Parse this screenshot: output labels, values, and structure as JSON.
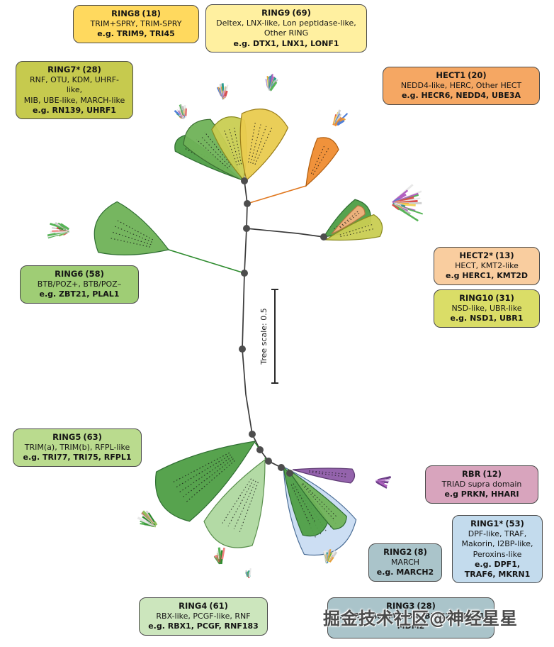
{
  "figure": {
    "scale_label": "Tree scale: 0.5",
    "watermark": "掘金技术社区@神经星星"
  },
  "boxes": [
    {
      "id": "ring8",
      "title": "RING8",
      "count": "(18)",
      "lines": [
        "TRIM+SPRY, TRIM-SPRY"
      ],
      "examples": "e.g. TRIM9, TRI45",
      "bg": "#FFD95E"
    },
    {
      "id": "ring9",
      "title": "RING9",
      "count": "(69)",
      "lines": [
        "Deltex, LNX-like, Lon peptidase-like,",
        "Other RING"
      ],
      "examples": "e.g. DTX1, LNX1, LONF1",
      "bg": "#FFF0A0"
    },
    {
      "id": "ring7",
      "title": "RING7*",
      "count": "(28)",
      "lines": [
        "RNF, OTU, KDM, UHRF-like,",
        "MIB, UBE-like, MARCH-like"
      ],
      "examples": "e.g. RN139, UHRF1",
      "bg": "#C6CA4E"
    },
    {
      "id": "hect1",
      "title": "HECT1",
      "count": "(20)",
      "lines": [
        "NEDD4-like, HERC, Other HECT"
      ],
      "examples": "e.g. HECR6, NEDD4, UBE3A",
      "bg": "#F5A763"
    },
    {
      "id": "hect2",
      "title": "HECT2*",
      "count": "(13)",
      "lines": [
        "HECT, KMT2-like"
      ],
      "examples": "e.g HERC1, KMT2D",
      "bg": "#F9CD9F"
    },
    {
      "id": "ring10",
      "title": "RING10",
      "count": "(31)",
      "lines": [
        "NSD-like, UBR-like"
      ],
      "examples": "e.g. NSD1, UBR1",
      "bg": "#DADD67"
    },
    {
      "id": "ring6",
      "title": "RING6",
      "count": "(58)",
      "lines": [
        "BTB/POZ+, BTB/POZ–"
      ],
      "examples": "e.g. ZBT21, PLAL1",
      "bg": "#9FCD75"
    },
    {
      "id": "ring5",
      "title": "RING5",
      "count": "(63)",
      "lines": [
        "TRIM(a), TRIM(b), RFPL-like"
      ],
      "examples": "e.g. TRI77, TRI75, RFPL1",
      "bg": "#BADB8E"
    },
    {
      "id": "rbr",
      "title": "RBR",
      "count": "(12)",
      "lines": [
        "TRIAD supra domain"
      ],
      "examples": "e.g PRKN, HHARI",
      "bg": "#D8A4BD"
    },
    {
      "id": "ring1",
      "title": "RING1*",
      "count": "(53)",
      "lines": [
        "DPF-like, TRAF,",
        "Makorin, I2BP-like,",
        "Peroxins-like"
      ],
      "examples": "e.g. DPF1, TRAF6, MKRN1",
      "bg": "#C3DBED"
    },
    {
      "id": "ring2",
      "title": "RING2",
      "count": "(8)",
      "lines": [
        "MARCH"
      ],
      "examples": "e.g. MARCH2",
      "bg": "#AAC4CA"
    },
    {
      "id": "ring3",
      "title": "RING3",
      "count": "(28)",
      "lines": [],
      "examples": "e.g. RN148, MEX3A, BIRC2, NEUL1, MDM2",
      "bg": "#AAC4CA"
    },
    {
      "id": "ring4",
      "title": "RING4",
      "count": "(61)",
      "lines": [
        "RBX-like, PCGF-like, RNF"
      ],
      "examples": "e.g. RBX1, PCGF, RNF183",
      "bg": "#CCE6BD"
    }
  ],
  "colors": {
    "branch": "#3a3a3a",
    "branch_green": "#2E8B2E",
    "branch_orange": "#E07820",
    "node": "#4d4d4d",
    "fan_green_dark": "#4E9E45",
    "fan_green": "#6FB257",
    "fan_green_light": "#AFD8A0",
    "fan_yellow": "#E9CB4F",
    "fan_yellowgreen": "#C9CD52",
    "fan_orange": "#EF8C30",
    "fan_peach": "#F3B27E",
    "fan_blue": "#C9DCF2",
    "fan_purple": "#8E5BA8",
    "tip_multi": [
      "#d0d0d0",
      "#bfbfbf",
      "#e8e8e8",
      "#d94f4f",
      "#4f7fd9",
      "#e8a13c",
      "#57b457",
      "#b35fc0",
      "#2a9d8f",
      "#f4d35e"
    ],
    "tip_warm": [
      "#ef8c30",
      "#d94f4f",
      "#4f7fd9",
      "#d0d0d0",
      "#f4d35e",
      "#e8a13c"
    ],
    "tip_purple": [
      "#8E5BA8",
      "#b35fc0",
      "#6a3d85",
      "#d0b0e0"
    ],
    "tip_redgreen": [
      "#d94f4f",
      "#57b457",
      "#2E8B2E",
      "#d0d0d0",
      "#e8e8e8",
      "#f08080",
      "#8fbf5c"
    ]
  }
}
